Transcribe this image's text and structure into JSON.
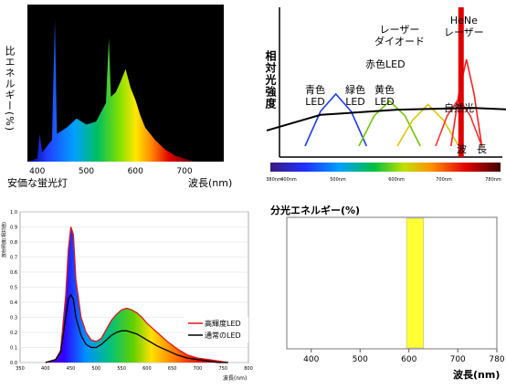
{
  "panels": {
    "fluorescent": {
      "ylabel": "比エネルギー(%)",
      "xlabel": "波長(nm)",
      "caption": "安価な蛍光灯",
      "xticks": [
        "400",
        "500",
        "600",
        "700"
      ]
    },
    "laser": {
      "ylabel": "相対光強度",
      "xlabel": "波　長",
      "labels": {
        "blue": "青色\nLED",
        "green": "緑色\nLED",
        "yellow": "黄色\nLED",
        "red": "赤色LED",
        "laser_diode": "レーザー\nダイオード",
        "hene": "HeNe\nレーザー",
        "natural": "自然光"
      },
      "bar_ticks": [
        "380nm",
        "400nm",
        "500nm",
        "600nm",
        "700nm",
        "780nm"
      ]
    },
    "led": {
      "ylabel": "放射照度(相対値)",
      "xlabel": "波長(nm)",
      "yticks": [
        "0.0",
        "0.1",
        "0.2",
        "0.3",
        "0.4",
        "0.5",
        "0.6",
        "0.7",
        "0.8",
        "0.9",
        "1.0"
      ],
      "xticks": [
        "350",
        "400",
        "450",
        "500",
        "550",
        "600",
        "650",
        "700",
        "750",
        "800"
      ],
      "legend": [
        "高輝度LED",
        "通常のLED"
      ],
      "colors": {
        "high": "#e3161b",
        "normal": "#000000"
      }
    },
    "single": {
      "title": "分光エネルギー(%)",
      "xlabel": "波長(nm)",
      "xticks": [
        "400",
        "500",
        "600",
        "700",
        "780"
      ],
      "band_color": "#ffff33"
    }
  },
  "chart_data": [
    {
      "type": "area",
      "title": "",
      "xlabel": "波長(nm)",
      "ylabel": "比エネルギー(%)",
      "xlim": [
        380,
        780
      ],
      "x": [
        380,
        400,
        405,
        410,
        420,
        430,
        436,
        440,
        460,
        480,
        500,
        520,
        540,
        546,
        550,
        560,
        570,
        580,
        590,
        600,
        610,
        620,
        640,
        660,
        680,
        700,
        720
      ],
      "values": [
        0,
        2,
        18,
        6,
        10,
        14,
        92,
        18,
        22,
        28,
        24,
        26,
        38,
        80,
        42,
        45,
        52,
        60,
        48,
        40,
        30,
        22,
        14,
        8,
        4,
        2,
        0
      ]
    },
    {
      "type": "line",
      "title": "",
      "xlabel": "波　長",
      "ylabel": "相対光強度",
      "series": [
        {
          "name": "青色LED",
          "x": [
            430,
            450,
            470,
            490,
            510
          ],
          "values": [
            0,
            40,
            60,
            40,
            0
          ]
        },
        {
          "name": "緑色LED",
          "x": [
            500,
            520,
            540,
            560,
            580
          ],
          "values": [
            0,
            35,
            52,
            35,
            0
          ]
        },
        {
          "name": "黄色LED",
          "x": [
            550,
            570,
            590,
            610,
            630
          ],
          "values": [
            0,
            30,
            48,
            30,
            0
          ]
        },
        {
          "name": "赤色LED",
          "x": [
            600,
            615,
            630,
            645,
            660
          ],
          "values": [
            0,
            35,
            55,
            35,
            0
          ]
        },
        {
          "name": "レーザーダイオード",
          "x": [
            620,
            630,
            640,
            650,
            660
          ],
          "values": [
            0,
            60,
            100,
            60,
            0
          ]
        },
        {
          "name": "HeNe レーザー",
          "x": [
            633,
            633
          ],
          "values": [
            0,
            160
          ]
        },
        {
          "name": "自然光",
          "x": [
            380,
            450,
            550,
            650,
            750
          ],
          "values": [
            18,
            36,
            42,
            44,
            40
          ]
        }
      ]
    },
    {
      "type": "line",
      "title": "",
      "xlabel": "波長(nm)",
      "ylabel": "放射照度(相対値)",
      "xlim": [
        350,
        800
      ],
      "ylim": [
        0,
        1.0
      ],
      "series": [
        {
          "name": "高輝度LED",
          "x": [
            400,
            420,
            430,
            440,
            445,
            450,
            455,
            460,
            470,
            480,
            490,
            500,
            510,
            520,
            530,
            540,
            550,
            560,
            570,
            580,
            590,
            600,
            620,
            640,
            660,
            680,
            700,
            720,
            740,
            760
          ],
          "values": [
            0.0,
            0.02,
            0.08,
            0.45,
            0.75,
            0.9,
            0.85,
            0.55,
            0.3,
            0.2,
            0.15,
            0.14,
            0.16,
            0.22,
            0.28,
            0.32,
            0.35,
            0.36,
            0.35,
            0.33,
            0.3,
            0.26,
            0.2,
            0.14,
            0.09,
            0.05,
            0.03,
            0.02,
            0.01,
            0.0
          ]
        },
        {
          "name": "通常のLED",
          "x": [
            400,
            420,
            430,
            440,
            445,
            450,
            455,
            460,
            470,
            480,
            490,
            500,
            510,
            520,
            530,
            540,
            550,
            560,
            570,
            580,
            590,
            600,
            620,
            640,
            660,
            680,
            700,
            720,
            740,
            760
          ],
          "values": [
            0.0,
            0.02,
            0.07,
            0.3,
            0.42,
            0.45,
            0.42,
            0.3,
            0.18,
            0.12,
            0.1,
            0.1,
            0.12,
            0.15,
            0.18,
            0.2,
            0.21,
            0.21,
            0.2,
            0.19,
            0.17,
            0.15,
            0.11,
            0.08,
            0.05,
            0.03,
            0.02,
            0.01,
            0.0,
            0.0
          ]
        }
      ]
    },
    {
      "type": "bar",
      "title": "分光エネルギー(%)",
      "xlabel": "波長(nm)",
      "xlim": [
        380,
        780
      ],
      "band": [
        595,
        630
      ],
      "values": [
        100
      ]
    }
  ]
}
